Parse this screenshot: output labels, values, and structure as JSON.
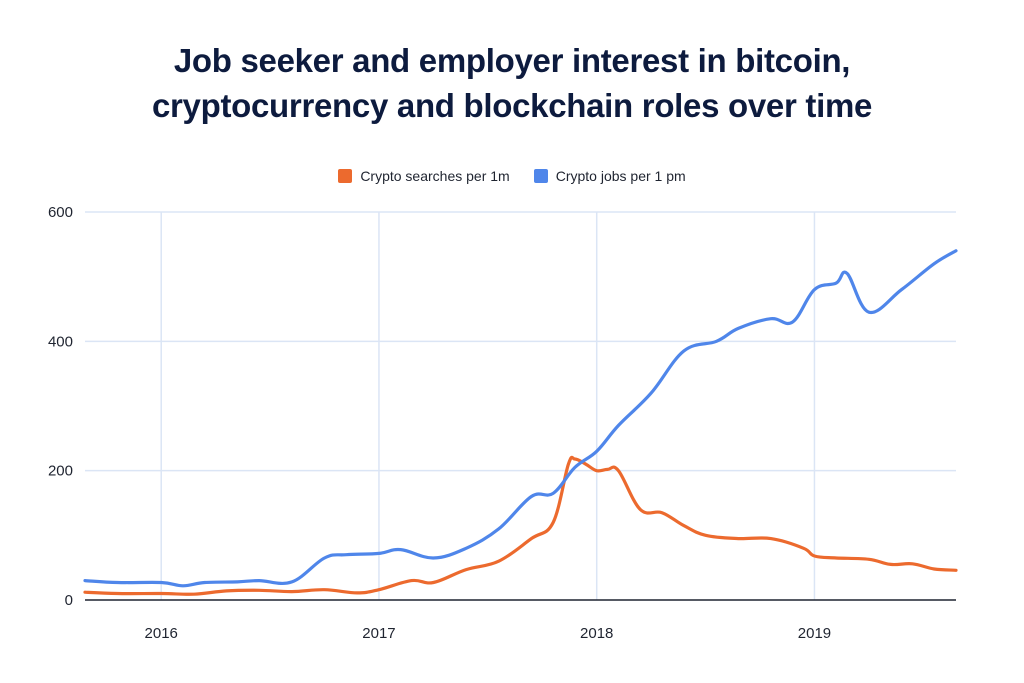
{
  "title_lines": [
    "Job seeker and employer interest in bitcoin,",
    "cryptocurrency and blockchain roles over time"
  ],
  "colors": {
    "searches": "#ec6a2e",
    "jobs": "#4f86ea",
    "grid": "#dbe5f5",
    "baseline": "#1f2430"
  },
  "chart_data": {
    "type": "line",
    "title": "Job seeker and employer interest in bitcoin, cryptocurrency and blockchain roles over time",
    "xlabel": "",
    "ylabel": "",
    "xlim": [
      2015.65,
      2019.65
    ],
    "ylim": [
      0,
      600
    ],
    "x_ticks": [
      2016,
      2017,
      2018,
      2019
    ],
    "x_tick_labels": [
      "2016",
      "2017",
      "2018",
      "2019"
    ],
    "y_ticks": [
      0,
      200,
      400,
      600
    ],
    "y_tick_labels": [
      "0",
      "200",
      "400",
      "600"
    ],
    "grid": true,
    "legend_position": "top-center",
    "series": [
      {
        "name": "Crypto searches per 1m",
        "color": "#ec6a2e",
        "x": [
          2015.65,
          2015.8,
          2016.0,
          2016.15,
          2016.3,
          2016.45,
          2016.6,
          2016.75,
          2016.9,
          2017.0,
          2017.15,
          2017.25,
          2017.4,
          2017.55,
          2017.7,
          2017.8,
          2017.87,
          2017.9,
          2017.95,
          2018.0,
          2018.05,
          2018.1,
          2018.2,
          2018.3,
          2018.4,
          2018.5,
          2018.65,
          2018.8,
          2018.95,
          2019.0,
          2019.1,
          2019.25,
          2019.35,
          2019.45,
          2019.55,
          2019.65
        ],
        "values": [
          12,
          10,
          10,
          9,
          14,
          15,
          13,
          16,
          11,
          16,
          30,
          27,
          47,
          60,
          95,
          120,
          210,
          218,
          210,
          200,
          202,
          200,
          140,
          135,
          115,
          100,
          95,
          95,
          80,
          68,
          65,
          63,
          55,
          56,
          48,
          46
        ]
      },
      {
        "name": "Crypto jobs per 1 pm",
        "color": "#4f86ea",
        "x": [
          2015.65,
          2015.8,
          2016.0,
          2016.1,
          2016.2,
          2016.35,
          2016.45,
          2016.6,
          2016.75,
          2016.85,
          2017.0,
          2017.1,
          2017.25,
          2017.4,
          2017.55,
          2017.7,
          2017.8,
          2017.9,
          2018.0,
          2018.1,
          2018.25,
          2018.4,
          2018.55,
          2018.65,
          2018.8,
          2018.9,
          2019.0,
          2019.1,
          2019.15,
          2019.25,
          2019.4,
          2019.55,
          2019.65
        ],
        "values": [
          30,
          27,
          27,
          22,
          27,
          28,
          30,
          28,
          65,
          70,
          72,
          78,
          65,
          80,
          110,
          160,
          165,
          205,
          230,
          270,
          320,
          385,
          400,
          420,
          435,
          430,
          480,
          490,
          505,
          445,
          480,
          520,
          540
        ]
      }
    ]
  }
}
